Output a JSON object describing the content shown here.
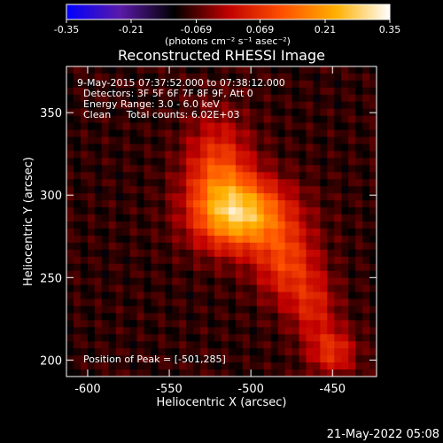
{
  "chart_data": {
    "type": "heatmap",
    "title": "Reconstructed RHESSI Image",
    "xlabel": "Heliocentric X (arcsec)",
    "ylabel": "Heliocentric Y (arcsec)",
    "xlim": [
      -613,
      -423
    ],
    "ylim": [
      190,
      378
    ],
    "x_ticks": [
      -600,
      -550,
      -500,
      -450
    ],
    "y_ticks": [
      200,
      250,
      300,
      350
    ],
    "x_tick_labels": [
      "-600",
      "-550",
      "-500",
      "-450"
    ],
    "y_tick_labels": [
      "200",
      "250",
      "300",
      "350"
    ],
    "colorbar": {
      "range": [
        -0.35,
        0.35
      ],
      "ticks": [
        -0.35,
        -0.21,
        -0.069,
        0.069,
        0.21,
        0.35
      ],
      "tick_labels": [
        "-0.35",
        "-0.21",
        "-0.069",
        "0.069",
        "0.21",
        "0.35"
      ],
      "unit_label": "(photons cm⁻² s⁻¹ asec⁻²)",
      "colors": [
        "#0000ff",
        "#5a1aa8",
        "#000000",
        "#c00000",
        "#ff5000",
        "#ffb000",
        "#ffffff"
      ]
    },
    "annotations": [
      "9-May-2015 07:37:52.000 to 07:38:12.000",
      "Detectors: 3F 5F 6F 7F 8F 9F, Att 0",
      "Energy Range: 3.0 - 6.0 keV",
      "Clean     Total counts: 6.02E+03"
    ],
    "peak_label": "Position of Peak = [-501,285]",
    "peak": [
      -501,
      285
    ],
    "sources": [
      {
        "x": -505,
        "y": 288,
        "sx": 20,
        "sy": 15,
        "amp": 0.33
      },
      {
        "x": -520,
        "y": 315,
        "sx": 14,
        "sy": 22,
        "amp": 0.18
      },
      {
        "x": -478,
        "y": 258,
        "sx": 13,
        "sy": 16,
        "amp": 0.16
      },
      {
        "x": -462,
        "y": 232,
        "sx": 10,
        "sy": 14,
        "amp": 0.12
      },
      {
        "x": -450,
        "y": 205,
        "sx": 10,
        "sy": 10,
        "amp": 0.15
      }
    ],
    "background": -0.09
  },
  "footer": {
    "timestamp": "21-May-2022 05:08"
  }
}
